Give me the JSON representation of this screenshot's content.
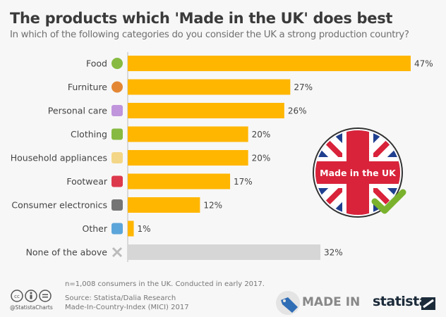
{
  "header": {
    "title": "The products which 'Made in the UK' does best",
    "subtitle": "In which of the following categories do you consider the UK a strong production country?"
  },
  "chart_data": {
    "type": "bar",
    "orientation": "horizontal",
    "categories": [
      "Food",
      "Furniture",
      "Personal care",
      "Clothing",
      "Household appliances",
      "Footwear",
      "Consumer electronics",
      "Other",
      "None of the above"
    ],
    "icons": [
      "apple-icon",
      "armchair-icon",
      "lotion-bottle-icon",
      "jacket-icon",
      "mixer-icon",
      "high-heel-icon",
      "tv-icon",
      "shopping-bag-icon",
      "cross-icon"
    ],
    "values": [
      47,
      27,
      26,
      20,
      20,
      17,
      12,
      1,
      32
    ],
    "value_labels": [
      "47%",
      "27%",
      "26%",
      "20%",
      "20%",
      "17%",
      "12%",
      "1%",
      "32%"
    ],
    "colors": {
      "bar": "#ffb600",
      "none_bar": "#d6d6d6"
    },
    "grid": false,
    "xlim": [
      0,
      47
    ]
  },
  "badge": {
    "text": "Made in the UK",
    "colors": {
      "blue": "#1f3f8f",
      "red": "#d9233a",
      "check": "#7ab22e"
    }
  },
  "footer": {
    "note": "n=1,008 consumers in the UK. Conducted in early 2017.",
    "source_line1": "Source: Statista/Dalia Research",
    "source_line2": "Made-In-Country-Index (MICI) 2017",
    "handle": "@StatistaCharts",
    "made_in_logo": "MADE IN",
    "statista_logo": "statista"
  }
}
